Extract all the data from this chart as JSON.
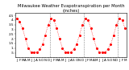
{
  "title": "Milwaukee Weather Evapotranspiration per Month (Inches)",
  "title_fontsize": 3.8,
  "background_color": "#ffffff",
  "line_color": "#ff0000",
  "dot_color": "#ff0000",
  "black_dot_color": "#000000",
  "dot_size": 1.2,
  "grid_color": "#888888",
  "et_values": [
    4.2,
    3.8,
    3.1,
    2.0,
    1.0,
    0.55,
    0.55,
    0.55,
    0.9,
    1.4,
    2.4,
    3.5,
    4.2,
    4.0,
    3.1,
    2.0,
    1.0,
    0.55,
    0.55,
    0.55,
    0.9,
    1.4,
    2.4,
    3.5,
    4.2,
    4.0,
    3.1,
    2.0,
    1.0,
    0.55,
    0.55,
    0.55,
    0.9,
    1.4,
    2.4,
    3.5,
    4.2,
    4.0,
    3.1
  ],
  "month_labels": [
    "J",
    "F",
    "M",
    "A",
    "M",
    "J",
    "J",
    "A",
    "S",
    "O",
    "N",
    "D",
    "J",
    "F",
    "M",
    "A",
    "M",
    "J",
    "J",
    "A",
    "S",
    "O",
    "N",
    "D",
    "J",
    "F",
    "M",
    "A",
    "M",
    "J",
    "J",
    "A",
    "S",
    "O",
    "N",
    "D",
    "J",
    "F",
    "M"
  ],
  "ylim": [
    0.0,
    4.8
  ],
  "ytick_values": [
    0.5,
    1.0,
    1.5,
    2.0,
    2.5,
    3.0,
    3.5,
    4.0,
    4.5
  ],
  "ytick_labels": [
    ".5",
    "1.",
    "1.5",
    "2.",
    "2.5",
    "3.",
    "3.5",
    "4.",
    "4.5"
  ],
  "vline_x": [
    11.5,
    23.5,
    35.5
  ],
  "tick_fontsize": 3.0,
  "figwidth": 1.6,
  "figheight": 0.87,
  "dpi": 100
}
